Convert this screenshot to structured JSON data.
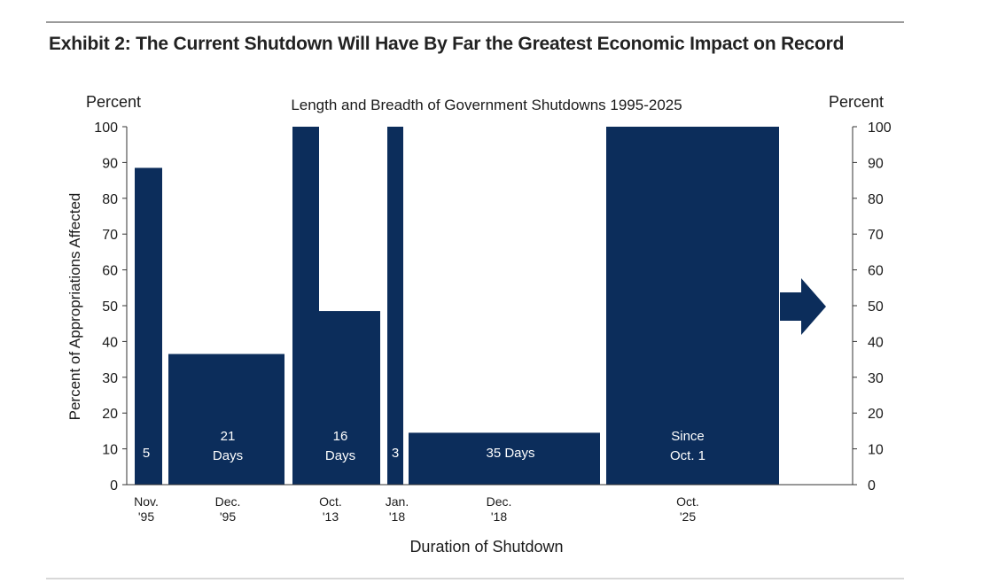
{
  "exhibit_title": "Exhibit 2: The Current Shutdown Will Have By Far the Greatest Economic Impact on Record",
  "chart_data": {
    "type": "bar",
    "title": "Length and Breadth of Government Shutdowns 1995-2025",
    "left_axis_unit": "Percent",
    "right_axis_unit": "Percent",
    "ylabel": "Percent of Appropriations Affected",
    "xlabel": "Duration of Shutdown",
    "ylim": [
      0,
      100
    ],
    "yticks": [
      0,
      10,
      20,
      30,
      40,
      50,
      60,
      70,
      80,
      90,
      100
    ],
    "ytick_labels": [
      "0",
      "10",
      "20",
      "30",
      "40",
      "50",
      "60",
      "70",
      "80",
      "90",
      "100"
    ],
    "bar_color": "#0c2d5b",
    "shutdowns": [
      {
        "date": [
          "Nov.",
          "'95"
        ],
        "duration_days": 5,
        "value": 88.5,
        "label": [
          "5"
        ],
        "label_align": "left"
      },
      {
        "date": [
          "Dec.",
          "'95"
        ],
        "duration_days": 21,
        "value": 36.5,
        "label": [
          "21",
          "Days"
        ],
        "label_align": "center"
      },
      {
        "date": [
          "Oct.",
          "'13"
        ],
        "duration_days": 16,
        "value": 100,
        "step_value": 48.5,
        "label": [
          "16",
          "Days"
        ],
        "label_align": "center"
      },
      {
        "date": [
          "Jan.",
          "'18"
        ],
        "duration_days": 3,
        "value": 100,
        "label": [
          "3"
        ],
        "label_align": "center"
      },
      {
        "date": [
          "Dec.",
          "'18"
        ],
        "duration_days": 35,
        "value": 14.5,
        "label": [
          "35 Days"
        ],
        "label_align": "center"
      },
      {
        "date": [
          "Oct.",
          "'25"
        ],
        "duration_days": null,
        "value": 100,
        "label": [
          "Since",
          "Oct. 1"
        ],
        "label_align": "center",
        "ongoing": true
      }
    ]
  }
}
